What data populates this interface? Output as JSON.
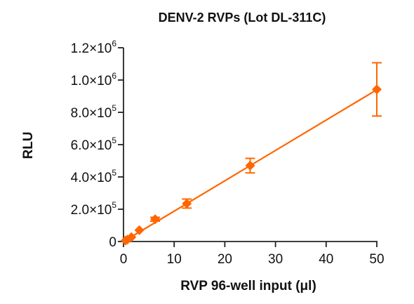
{
  "chart_data": {
    "type": "scatter",
    "title": "DENV-2 RVPs (Lot DL-311C)",
    "xlabel": "RVP 96-well input (μl)",
    "ylabel": "RLU",
    "xlim": [
      0,
      50
    ],
    "ylim": [
      0,
      1200000
    ],
    "x_ticks": [
      0,
      10,
      20,
      30,
      40,
      50
    ],
    "x_tick_labels": [
      "0",
      "10",
      "20",
      "30",
      "40",
      "50"
    ],
    "y_ticks": [
      0,
      200000,
      400000,
      600000,
      800000,
      1000000,
      1200000
    ],
    "y_tick_labels": [
      {
        "mantissa": "0",
        "exponent": ""
      },
      {
        "mantissa": "2.0×10",
        "exponent": "5"
      },
      {
        "mantissa": "4.0×10",
        "exponent": "5"
      },
      {
        "mantissa": "6.0×10",
        "exponent": "5"
      },
      {
        "mantissa": "8.0×10",
        "exponent": "5"
      },
      {
        "mantissa": "1.0×10",
        "exponent": "6"
      },
      {
        "mantissa": "1.2×10",
        "exponent": "6"
      }
    ],
    "grid": false,
    "series": [
      {
        "color": "#ff6600",
        "marker": "diamond",
        "fit_line": [
          [
            0,
            0
          ],
          [
            50,
            940000
          ]
        ],
        "x": [
          0.39,
          0.78,
          1.56,
          3.125,
          6.25,
          12.5,
          25,
          50
        ],
        "y": [
          6000,
          12000,
          27000,
          70000,
          138000,
          235000,
          470000,
          942000
        ],
        "error": [
          2000,
          3000,
          6000,
          8000,
          12000,
          28000,
          45000,
          165000
        ]
      }
    ]
  }
}
